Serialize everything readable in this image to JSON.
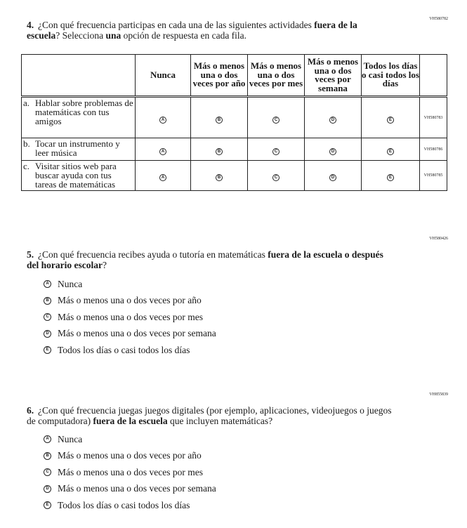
{
  "q4": {
    "code": "VH580782",
    "number": "4.",
    "text_pre": "¿Con qué frecuencia participas en cada una de las siguientes actividades ",
    "text_bold1": "fuera de la escuela",
    "text_mid": "? Selecciona ",
    "text_bold2": "una",
    "text_post": " opción de respuesta en cada fila.",
    "columns": [
      "Nunca",
      "Más o menos una o dos veces por año",
      "Más o menos una o dos veces por mes",
      "Más o menos una o dos veces por semana",
      "Todos los días o casi todos los días"
    ],
    "bubbles": [
      "A",
      "B",
      "C",
      "D",
      "E"
    ],
    "rows": [
      {
        "letter": "a.",
        "label": "Hablar sobre problemas de matemáticas con tus amigos",
        "code": "VH580783"
      },
      {
        "letter": "b.",
        "label": "Tocar un instrumento y leer música",
        "code": "VH580786"
      },
      {
        "letter": "c.",
        "label": "Visitar sitios web para buscar ayuda con tus tareas de matemáticas",
        "code": "VH580785"
      }
    ]
  },
  "q5": {
    "code": "VH580426",
    "number": "5.",
    "text_pre": "¿Con qué frecuencia recibes ayuda o tutoría en matemáticas ",
    "text_bold": "fuera de la escuela o después del horario escolar",
    "text_post": "?",
    "options": [
      {
        "letter": "A",
        "label": "Nunca"
      },
      {
        "letter": "B",
        "label": "Más o menos una o dos veces por año"
      },
      {
        "letter": "C",
        "label": "Más o menos una o dos veces por mes"
      },
      {
        "letter": "D",
        "label": "Más o menos una o dos veces por semana"
      },
      {
        "letter": "E",
        "label": "Todos los días o casi todos los días"
      }
    ]
  },
  "q6": {
    "code": "VH855839",
    "number": "6.",
    "text_pre": "¿Con qué frecuencia juegas juegos digitales (por ejemplo, aplicaciones, videojuegos o juegos de computadora) ",
    "text_bold": "fuera de la escuela",
    "text_post": " que incluyen matemáticas?",
    "options": [
      {
        "letter": "A",
        "label": "Nunca"
      },
      {
        "letter": "B",
        "label": "Más o menos una o dos veces por año"
      },
      {
        "letter": "C",
        "label": "Más o menos una o dos veces por mes"
      },
      {
        "letter": "D",
        "label": "Más o menos una o dos veces por semana"
      },
      {
        "letter": "E",
        "label": "Todos los días o casi todos los días"
      }
    ]
  }
}
